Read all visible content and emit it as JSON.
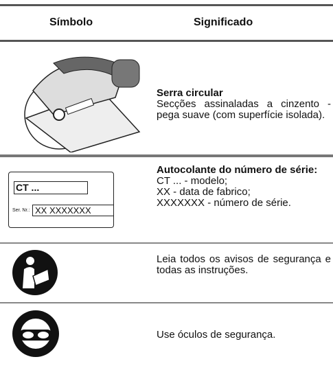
{
  "table": {
    "header": [
      "Símbolo",
      "Significado"
    ],
    "rows": [
      {
        "title": "Serra circular",
        "text": "Secções assinaladas a cinzento - pega suave (com superfície isolada)."
      },
      {
        "title": "Autocolante do número de série:",
        "lines": [
          "CT ... - modelo;",
          "XX - data de fabrico;",
          "XXXXXXX - número de série."
        ],
        "sticker": {
          "model": "CT ...",
          "serial_label": "Ser. Nr.:",
          "serial": "XX XXXXXXX"
        }
      },
      {
        "text": "Leia todos os avisos de segurança e todas as instruções."
      },
      {
        "text": "Use óculos de segurança."
      }
    ]
  }
}
